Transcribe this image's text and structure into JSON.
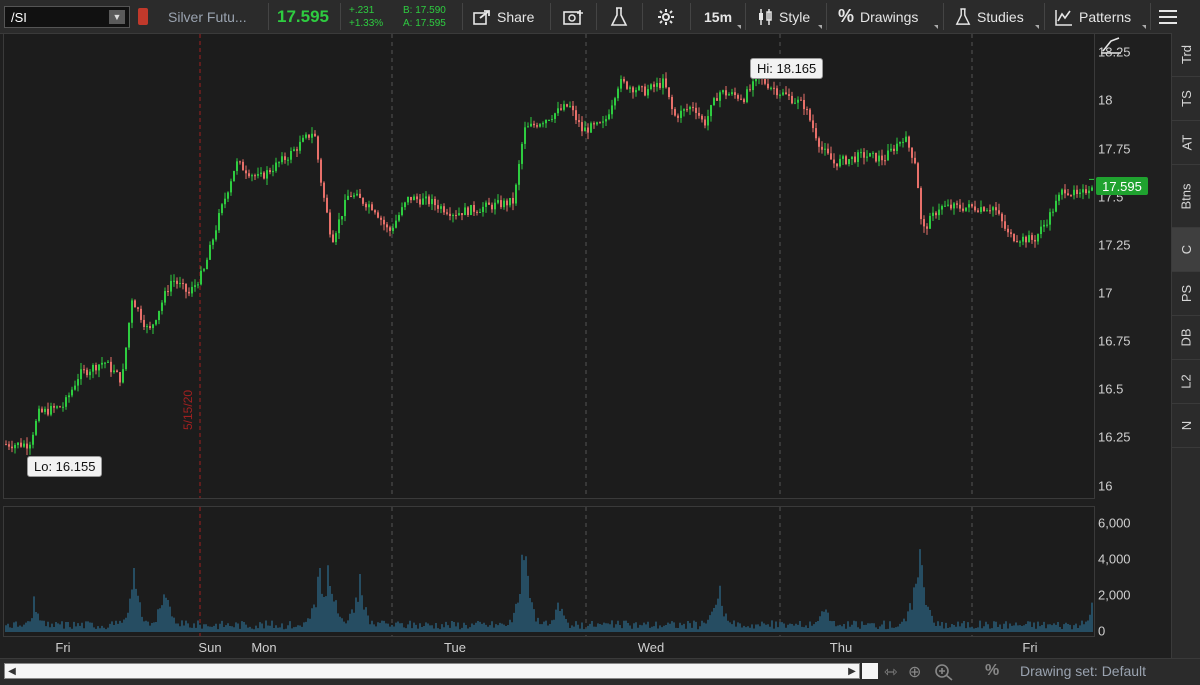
{
  "toolbar": {
    "symbol": "/SI",
    "description": "Silver Futu...",
    "last": "17.595",
    "change": "+.231",
    "change_pct": "+1.33%",
    "bid": "B: 17.590",
    "ask": "A: 17.595",
    "share_label": "Share",
    "timeframe_label": "15m",
    "style_label": "Style",
    "drawings_label": "Drawings",
    "studies_label": "Studies",
    "patterns_label": "Patterns"
  },
  "right_rail": {
    "tabs": [
      "Trd",
      "TS",
      "AT",
      "Btns",
      "C",
      "PS",
      "DB",
      "L2",
      "N"
    ],
    "active": "C"
  },
  "price_axis": {
    "labels": [
      "18.25",
      "18",
      "17.75",
      "17.5",
      "17.25",
      "17",
      "16.75",
      "16.5",
      "16.25",
      "16"
    ]
  },
  "volume_axis": {
    "labels": [
      "6,000",
      "4,000",
      "2,000",
      "0"
    ]
  },
  "current_price_tag": "17.595",
  "hi_label": "Hi: 18.165",
  "lo_label": "Lo: 16.155",
  "date_marker": "5/15/20",
  "x_axis": {
    "labels": [
      "Fri",
      "Sun",
      "Mon",
      "Tue",
      "Wed",
      "Thu",
      "Fri"
    ]
  },
  "bottom": {
    "drawing_set": "Drawing set: Default"
  },
  "colors": {
    "up": "#2ecc40",
    "down": "#e8706a",
    "volume": "#2f7ea8",
    "grid": "#555555",
    "marker": "#a02020"
  },
  "chart_data": {
    "type": "candlestick",
    "price_range": [
      15.93,
      18.35
    ],
    "volume_range": [
      0,
      6000
    ],
    "keypoints": [
      [
        0,
        16.22
      ],
      [
        25,
        16.22
      ],
      [
        35,
        16.38
      ],
      [
        60,
        16.42
      ],
      [
        75,
        16.58
      ],
      [
        100,
        16.65
      ],
      [
        118,
        16.55
      ],
      [
        128,
        16.98
      ],
      [
        145,
        16.8
      ],
      [
        168,
        17.08
      ],
      [
        185,
        17.0
      ],
      [
        200,
        17.12
      ],
      [
        215,
        17.4
      ],
      [
        232,
        17.68
      ],
      [
        255,
        17.6
      ],
      [
        285,
        17.72
      ],
      [
        310,
        17.85
      ],
      [
        318,
        17.55
      ],
      [
        328,
        17.28
      ],
      [
        345,
        17.52
      ],
      [
        370,
        17.45
      ],
      [
        385,
        17.32
      ],
      [
        405,
        17.5
      ],
      [
        425,
        17.48
      ],
      [
        450,
        17.42
      ],
      [
        480,
        17.45
      ],
      [
        510,
        17.48
      ],
      [
        520,
        17.85
      ],
      [
        545,
        17.92
      ],
      [
        565,
        17.98
      ],
      [
        578,
        17.85
      ],
      [
        600,
        17.88
      ],
      [
        615,
        18.1
      ],
      [
        640,
        18.05
      ],
      [
        660,
        18.1
      ],
      [
        670,
        17.92
      ],
      [
        690,
        17.98
      ],
      [
        700,
        17.88
      ],
      [
        715,
        18.05
      ],
      [
        740,
        18.02
      ],
      [
        755,
        18.12
      ],
      [
        775,
        18.05
      ],
      [
        800,
        17.98
      ],
      [
        818,
        17.75
      ],
      [
        830,
        17.68
      ],
      [
        860,
        17.72
      ],
      [
        880,
        17.7
      ],
      [
        900,
        17.82
      ],
      [
        912,
        17.68
      ],
      [
        918,
        17.32
      ],
      [
        935,
        17.45
      ],
      [
        960,
        17.45
      ],
      [
        990,
        17.45
      ],
      [
        1005,
        17.3
      ],
      [
        1030,
        17.28
      ],
      [
        1045,
        17.4
      ],
      [
        1060,
        17.55
      ],
      [
        1075,
        17.5
      ],
      [
        1092,
        17.595
      ]
    ],
    "volume_spikes": [
      [
        30,
        2000
      ],
      [
        130,
        4000
      ],
      [
        160,
        3500
      ],
      [
        315,
        4200
      ],
      [
        325,
        5900
      ],
      [
        355,
        3800
      ],
      [
        520,
        5800
      ],
      [
        555,
        2000
      ],
      [
        715,
        3500
      ],
      [
        820,
        2000
      ],
      [
        915,
        6600
      ],
      [
        1088,
        1800
      ]
    ],
    "hi": 18.165,
    "lo": 16.155,
    "last": 17.595
  }
}
